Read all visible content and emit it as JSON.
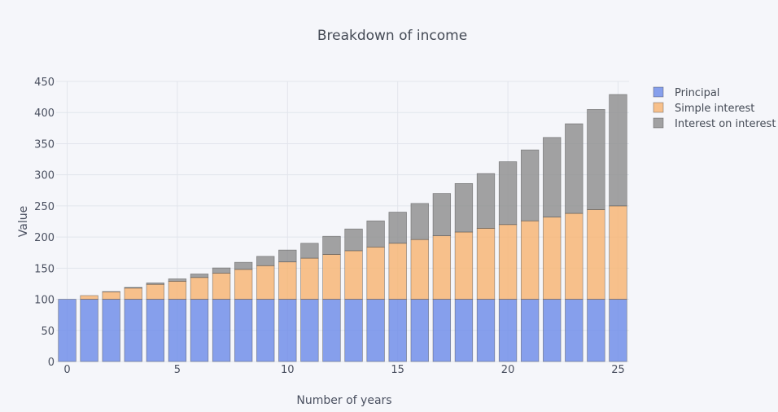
{
  "chart_data": {
    "type": "bar",
    "stacked": true,
    "title": "Breakdown of income",
    "xlabel": "Number of years",
    "ylabel": "Value",
    "x": [
      0,
      1,
      2,
      3,
      4,
      5,
      6,
      7,
      8,
      9,
      10,
      11,
      12,
      13,
      14,
      15,
      16,
      17,
      18,
      19,
      20,
      21,
      22,
      23,
      24,
      25
    ],
    "xticks": [
      0,
      5,
      10,
      15,
      20,
      25
    ],
    "yticks": [
      0,
      50,
      100,
      150,
      200,
      250,
      300,
      350,
      400,
      450
    ],
    "ylim": [
      0,
      450
    ],
    "grid": true,
    "legend_position": "top-right",
    "series": [
      {
        "name": "Principal",
        "color": "#6a8ae8",
        "values": [
          100,
          100,
          100,
          100,
          100,
          100,
          100,
          100,
          100,
          100,
          100,
          100,
          100,
          100,
          100,
          100,
          100,
          100,
          100,
          100,
          100,
          100,
          100,
          100,
          100,
          100
        ]
      },
      {
        "name": "Simple interest",
        "color": "#f7b36f",
        "values": [
          0,
          6,
          12,
          18,
          24,
          29,
          35,
          42,
          48,
          54,
          60,
          66,
          72,
          78,
          84,
          90,
          96,
          102,
          108,
          114,
          120,
          126,
          132,
          138,
          144,
          150
        ]
      },
      {
        "name": "Interest on interest",
        "color": "#8c8c8c",
        "values": [
          0,
          0,
          0.4,
          1.1,
          2.3,
          3.8,
          5.7,
          8.4,
          11.4,
          15,
          19.1,
          24,
          29.2,
          35,
          42,
          50,
          58,
          68,
          78,
          88,
          101,
          114,
          128,
          144,
          161,
          179
        ]
      }
    ]
  }
}
